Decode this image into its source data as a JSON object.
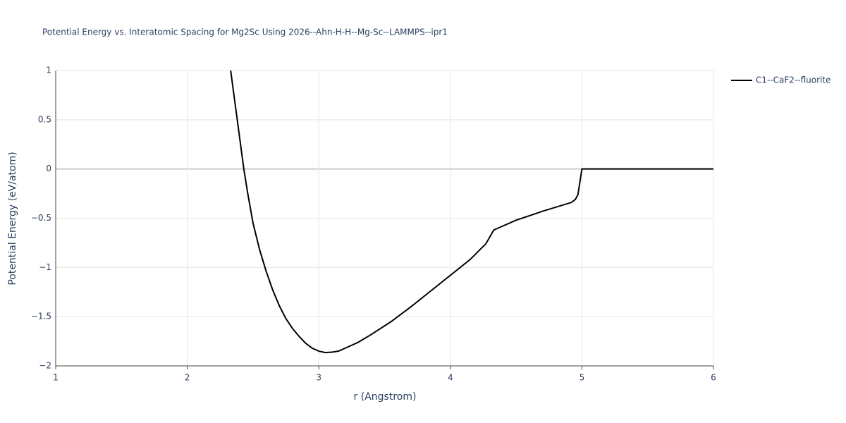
{
  "chart_data": {
    "type": "line",
    "title": "Potential Energy vs. Interatomic Spacing for Mg2Sc Using 2026--Ahn-H-H--Mg-Sc--LAMMPS--ipr1",
    "x_label": "r (Angstrom)",
    "y_label": "Potential Energy (eV/atom)",
    "xlim": [
      1,
      6
    ],
    "xticks": [
      1,
      2,
      3,
      4,
      5,
      6
    ],
    "ylim": [
      -2,
      1
    ],
    "yticks": [
      {
        "value": -2,
        "label": "−2"
      },
      {
        "value": -1.5,
        "label": "−1.5"
      },
      {
        "value": -1,
        "label": "−1"
      },
      {
        "value": -0.5,
        "label": "−0.5"
      },
      0,
      0.5,
      1
    ],
    "grid": true,
    "legend": "top-right",
    "series": [
      {
        "name": "C1--CaF2--fluorite",
        "color": "#000000",
        "x": [
          2.33,
          2.37,
          2.4,
          2.43,
          2.46,
          2.5,
          2.55,
          2.6,
          2.65,
          2.7,
          2.75,
          2.8,
          2.85,
          2.9,
          2.95,
          3.0,
          3.05,
          3.1,
          3.15,
          3.2,
          3.3,
          3.4,
          3.55,
          3.7,
          3.85,
          4.0,
          4.15,
          4.27,
          4.33,
          4.5,
          4.7,
          4.92,
          4.95,
          4.97,
          5.0,
          6.0
        ],
        "values": [
          1.0,
          0.6,
          0.3,
          0.0,
          -0.25,
          -0.55,
          -0.82,
          -1.04,
          -1.23,
          -1.39,
          -1.52,
          -1.62,
          -1.7,
          -1.77,
          -1.82,
          -1.85,
          -1.865,
          -1.86,
          -1.85,
          -1.82,
          -1.76,
          -1.68,
          -1.55,
          -1.4,
          -1.24,
          -1.08,
          -0.92,
          -0.76,
          -0.62,
          -0.52,
          -0.43,
          -0.34,
          -0.31,
          -0.26,
          0,
          0
        ]
      }
    ]
  }
}
